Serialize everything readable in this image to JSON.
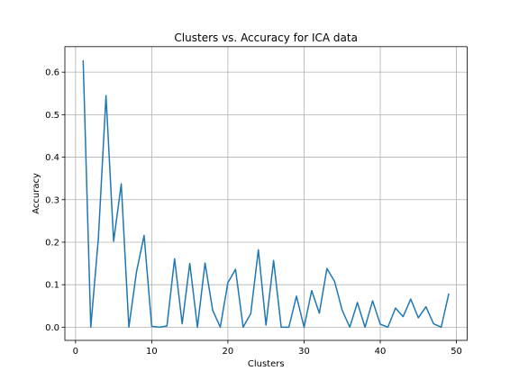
{
  "chart_data": {
    "type": "line",
    "title": "Clusters vs. Accuracy for ICA data",
    "xlabel": "Clusters",
    "ylabel": "Accuracy",
    "xlim": [
      -1.4,
      51.4
    ],
    "ylim": [
      -0.031,
      0.66
    ],
    "grid": true,
    "xticks": [
      0,
      10,
      20,
      30,
      40,
      50
    ],
    "yticks": [
      0.0,
      0.1,
      0.2,
      0.3,
      0.4,
      0.5,
      0.6
    ],
    "xtick_labels": [
      "0",
      "10",
      "20",
      "30",
      "40",
      "50"
    ],
    "ytick_labels": [
      "0.0",
      "0.1",
      "0.2",
      "0.3",
      "0.4",
      "0.5",
      "0.6"
    ],
    "series": [
      {
        "color": "#1f77b4",
        "x": [
          1,
          2,
          3,
          4,
          5,
          6,
          7,
          8,
          9,
          10,
          11,
          12,
          13,
          14,
          15,
          16,
          17,
          18,
          19,
          20,
          21,
          22,
          23,
          24,
          25,
          26,
          27,
          28,
          29,
          30,
          31,
          32,
          33,
          34,
          35,
          36,
          37,
          38,
          39,
          40,
          41,
          42,
          43,
          44,
          45,
          46,
          47,
          48,
          49
        ],
        "y": [
          0.628,
          0.0,
          0.21,
          0.545,
          0.202,
          0.337,
          0.0,
          0.13,
          0.216,
          0.002,
          0.0,
          0.003,
          0.161,
          0.008,
          0.15,
          0.0,
          0.151,
          0.04,
          0.0,
          0.105,
          0.136,
          0.0,
          0.032,
          0.182,
          0.005,
          0.157,
          0.0,
          0.0,
          0.073,
          0.0,
          0.086,
          0.033,
          0.138,
          0.108,
          0.04,
          0.0,
          0.058,
          0.0,
          0.062,
          0.007,
          0.0,
          0.045,
          0.025,
          0.066,
          0.022,
          0.048,
          0.008,
          0.0,
          0.079
        ]
      }
    ]
  }
}
